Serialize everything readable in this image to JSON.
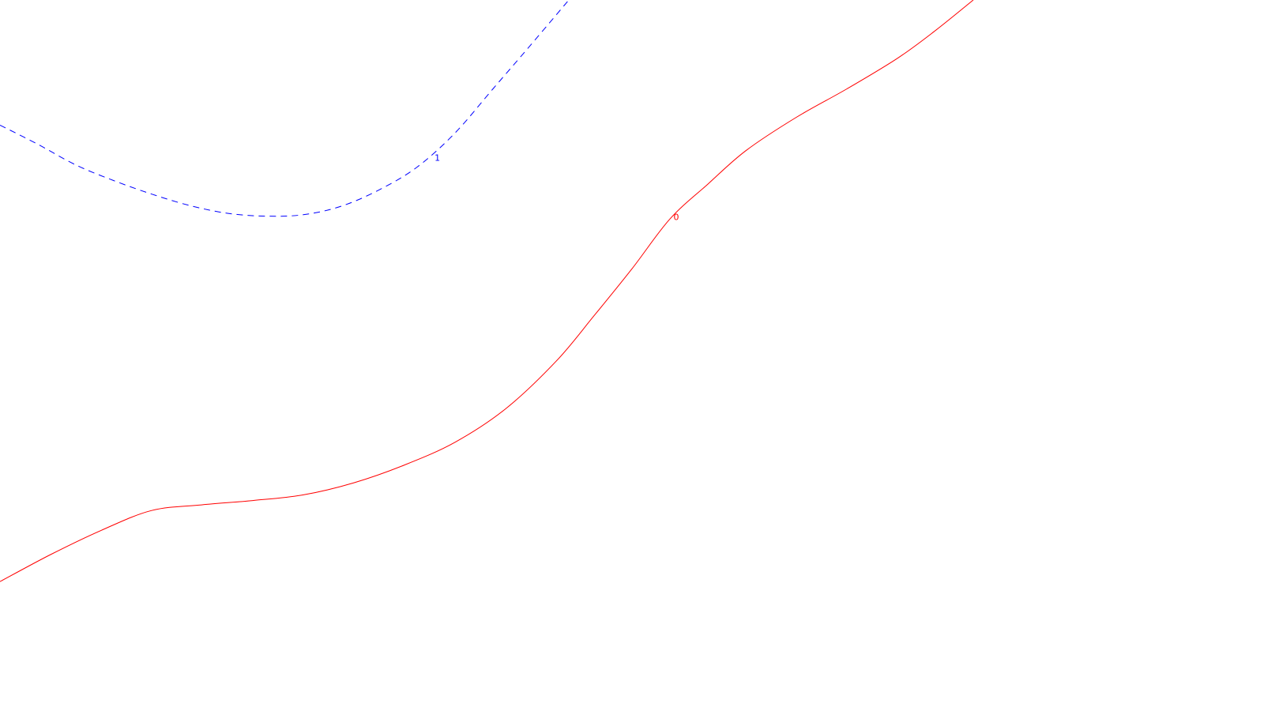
{
  "chart_data": {
    "type": "line",
    "title": "",
    "xlabel": "",
    "ylabel": "",
    "grid": false,
    "legend": "none",
    "series": [
      {
        "id": "contour-1",
        "label": "1",
        "color": "#0000ff",
        "dashed": true,
        "points": [
          [
            0.0,
            0.176
          ],
          [
            0.03,
            0.203
          ],
          [
            0.06,
            0.232
          ],
          [
            0.09,
            0.254
          ],
          [
            0.12,
            0.273
          ],
          [
            0.15,
            0.289
          ],
          [
            0.18,
            0.3
          ],
          [
            0.21,
            0.304
          ],
          [
            0.24,
            0.302
          ],
          [
            0.27,
            0.29
          ],
          [
            0.3,
            0.267
          ],
          [
            0.33,
            0.235
          ],
          [
            0.36,
            0.187
          ],
          [
            0.39,
            0.125
          ],
          [
            0.42,
            0.063
          ],
          [
            0.45,
            0.0
          ]
        ]
      },
      {
        "id": "contour-0",
        "label": "0",
        "color": "#ff0000",
        "dashed": false,
        "points": [
          [
            0.0,
            0.818
          ],
          [
            0.04,
            0.78
          ],
          [
            0.08,
            0.746
          ],
          [
            0.12,
            0.718
          ],
          [
            0.16,
            0.71
          ],
          [
            0.2,
            0.704
          ],
          [
            0.24,
            0.696
          ],
          [
            0.28,
            0.679
          ],
          [
            0.32,
            0.654
          ],
          [
            0.36,
            0.622
          ],
          [
            0.4,
            0.575
          ],
          [
            0.44,
            0.508
          ],
          [
            0.47,
            0.444
          ],
          [
            0.5,
            0.378
          ],
          [
            0.53,
            0.308
          ],
          [
            0.56,
            0.259
          ],
          [
            0.59,
            0.212
          ],
          [
            0.63,
            0.165
          ],
          [
            0.67,
            0.125
          ],
          [
            0.71,
            0.082
          ],
          [
            0.74,
            0.043
          ],
          [
            0.77,
            0.0
          ]
        ]
      }
    ]
  }
}
